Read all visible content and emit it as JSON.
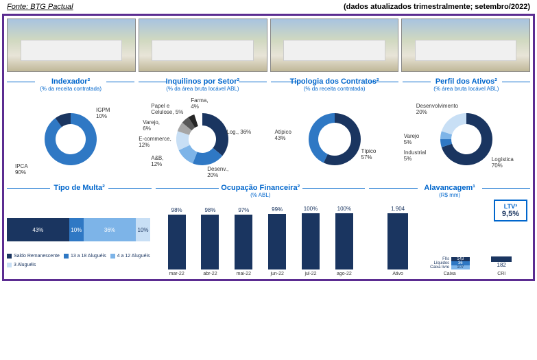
{
  "header": {
    "source": "Fonte: BTG Pactual",
    "update": "(dados atualizados trimestralmente; setembro/2022)"
  },
  "colors": {
    "navy": "#1a3560",
    "blue": "#2f78c4",
    "lightblue": "#7db4e8",
    "paleblue": "#c8dff5",
    "grey": "#a6a6a6",
    "darkgrey": "#595959",
    "black": "#262626",
    "titleBlue": "#0066cc"
  },
  "indexador": {
    "title": "Indexador²",
    "subtitle": "(% da receita contratada)",
    "slices": [
      {
        "label": "IPCA",
        "value": 90,
        "color": "#2f78c4"
      },
      {
        "label": "IGPM",
        "value": 10,
        "color": "#1a3560"
      }
    ]
  },
  "inquilinos": {
    "title": "Inquilinos por Setor²",
    "subtitle": "(% da área bruta locável ABL)",
    "slices": [
      {
        "label": "Log.",
        "value": 36,
        "color": "#1a3560"
      },
      {
        "label": "Desenv.",
        "value": 20,
        "color": "#2f78c4"
      },
      {
        "label": "A&B",
        "value": 12,
        "color": "#7db4e8"
      },
      {
        "label": "E-commerce",
        "value": 12,
        "color": "#c8dff5"
      },
      {
        "label": "Varejo",
        "value": 6,
        "color": "#a6a6a6"
      },
      {
        "label": "Papel e Celulose",
        "value": 5,
        "color": "#595959"
      },
      {
        "label": "Farma",
        "value": 4,
        "color": "#262626"
      }
    ]
  },
  "tipologia": {
    "title": "Tipologia dos Contratos²",
    "subtitle": "(% da receita contratada)",
    "slices": [
      {
        "label": "Típico",
        "value": 57,
        "color": "#1a3560"
      },
      {
        "label": "Atípico",
        "value": 43,
        "color": "#2f78c4"
      }
    ]
  },
  "perfil": {
    "title": "Perfil dos Ativos²",
    "subtitle": "(% área bruta locável ABL)",
    "slices": [
      {
        "label": "Logística",
        "value": 70,
        "color": "#1a3560"
      },
      {
        "label": "Industrial",
        "value": 5,
        "color": "#2f78c4"
      },
      {
        "label": "Varejo",
        "value": 5,
        "color": "#7db4e8"
      },
      {
        "label": "Desenvolvimento",
        "value": 20,
        "color": "#c8dff5"
      }
    ]
  },
  "multa": {
    "title": "Tipo de Multa²",
    "segments": [
      {
        "label": "Saldo Remanescente",
        "value": 43,
        "color": "#1a3560"
      },
      {
        "label": "13 a 18 Aluguéis",
        "value": 10,
        "color": "#2f78c4"
      },
      {
        "label": "4 a 12 Aluguéis",
        "value": 36,
        "color": "#7db4e8"
      },
      {
        "label": "3 Aluguéis",
        "value": 10,
        "color": "#c8dff5"
      }
    ]
  },
  "ocupacao": {
    "title": "Ocupação Financeira²",
    "subtitle": "(% ABL)",
    "ylimMax": 100,
    "bars": [
      {
        "label": "mar-22",
        "value": 98
      },
      {
        "label": "abr-22",
        "value": 98
      },
      {
        "label": "mai-22",
        "value": 97
      },
      {
        "label": "jun-22",
        "value": 99
      },
      {
        "label": "jul-22",
        "value": 100
      },
      {
        "label": "ago-22",
        "value": 100
      }
    ],
    "barColor": "#1a3560"
  },
  "alavancagem": {
    "title": "Alavancagem¹",
    "subtitle": "(R$ mm)",
    "ltvLabel": "LTV³",
    "ltvValue": "9,5%",
    "ativo": {
      "label": "Ativo",
      "value": 1904,
      "color": "#1a3560"
    },
    "caixa": {
      "label": "Caixa",
      "stack": [
        {
          "label": "FIIs Líquidos",
          "value": 143,
          "color": "#1a3560",
          "textValue": "143"
        },
        {
          "label": "",
          "value": 36,
          "color": "#2f78c4",
          "textValue": "36"
        },
        {
          "label": "Caixa livre",
          "value": 107,
          "color": "#7db4e8",
          "textValue": "107"
        }
      ]
    },
    "cri": {
      "label": "CRI",
      "value": 182,
      "color": "#1a3560"
    },
    "yMax": 1904
  }
}
